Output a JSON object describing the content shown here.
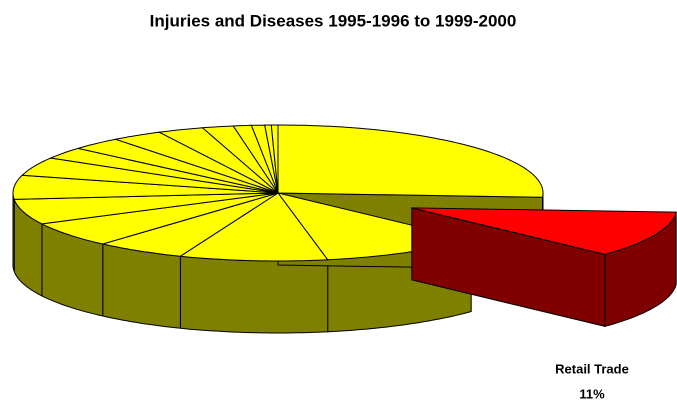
{
  "chart_data": {
    "type": "pie",
    "title": "Injuries and Diseases 1995-1996 to 1999-2000",
    "categories": [
      null,
      "Retail Trade",
      null,
      null,
      null,
      null,
      null,
      null,
      null,
      null,
      null,
      null,
      null,
      null,
      null,
      null,
      null,
      null
    ],
    "values": [
      26,
      11,
      10,
      9,
      5.5,
      6,
      6,
      5.7,
      4.4,
      2.8,
      3.1,
      3.1,
      2.8,
      1.9,
      1.1,
      0.8,
      0.4,
      0.4
    ],
    "value_labels": [
      null,
      "11%",
      null,
      null,
      null,
      null,
      null,
      null,
      null,
      null,
      null,
      null,
      null,
      null,
      null,
      null,
      null,
      null
    ],
    "colors": [
      "#ffff00",
      "#ff0000",
      "#ffff00",
      "#ffff00",
      "#ffff00",
      "#ffff00",
      "#ffff00",
      "#ffff00",
      "#ffff00",
      "#ffff00",
      "#ffff00",
      "#ffff00",
      "#ffff00",
      "#ffff00",
      "#ffff00",
      "#ffff00",
      "#ffff00",
      "#ffff00"
    ],
    "explode": [
      false,
      true,
      false,
      false,
      false,
      false,
      false,
      false,
      false,
      false,
      false,
      false,
      false,
      false,
      false,
      false,
      false,
      false
    ],
    "start_angle": 0,
    "direction": "clockwise",
    "three_d": true
  }
}
